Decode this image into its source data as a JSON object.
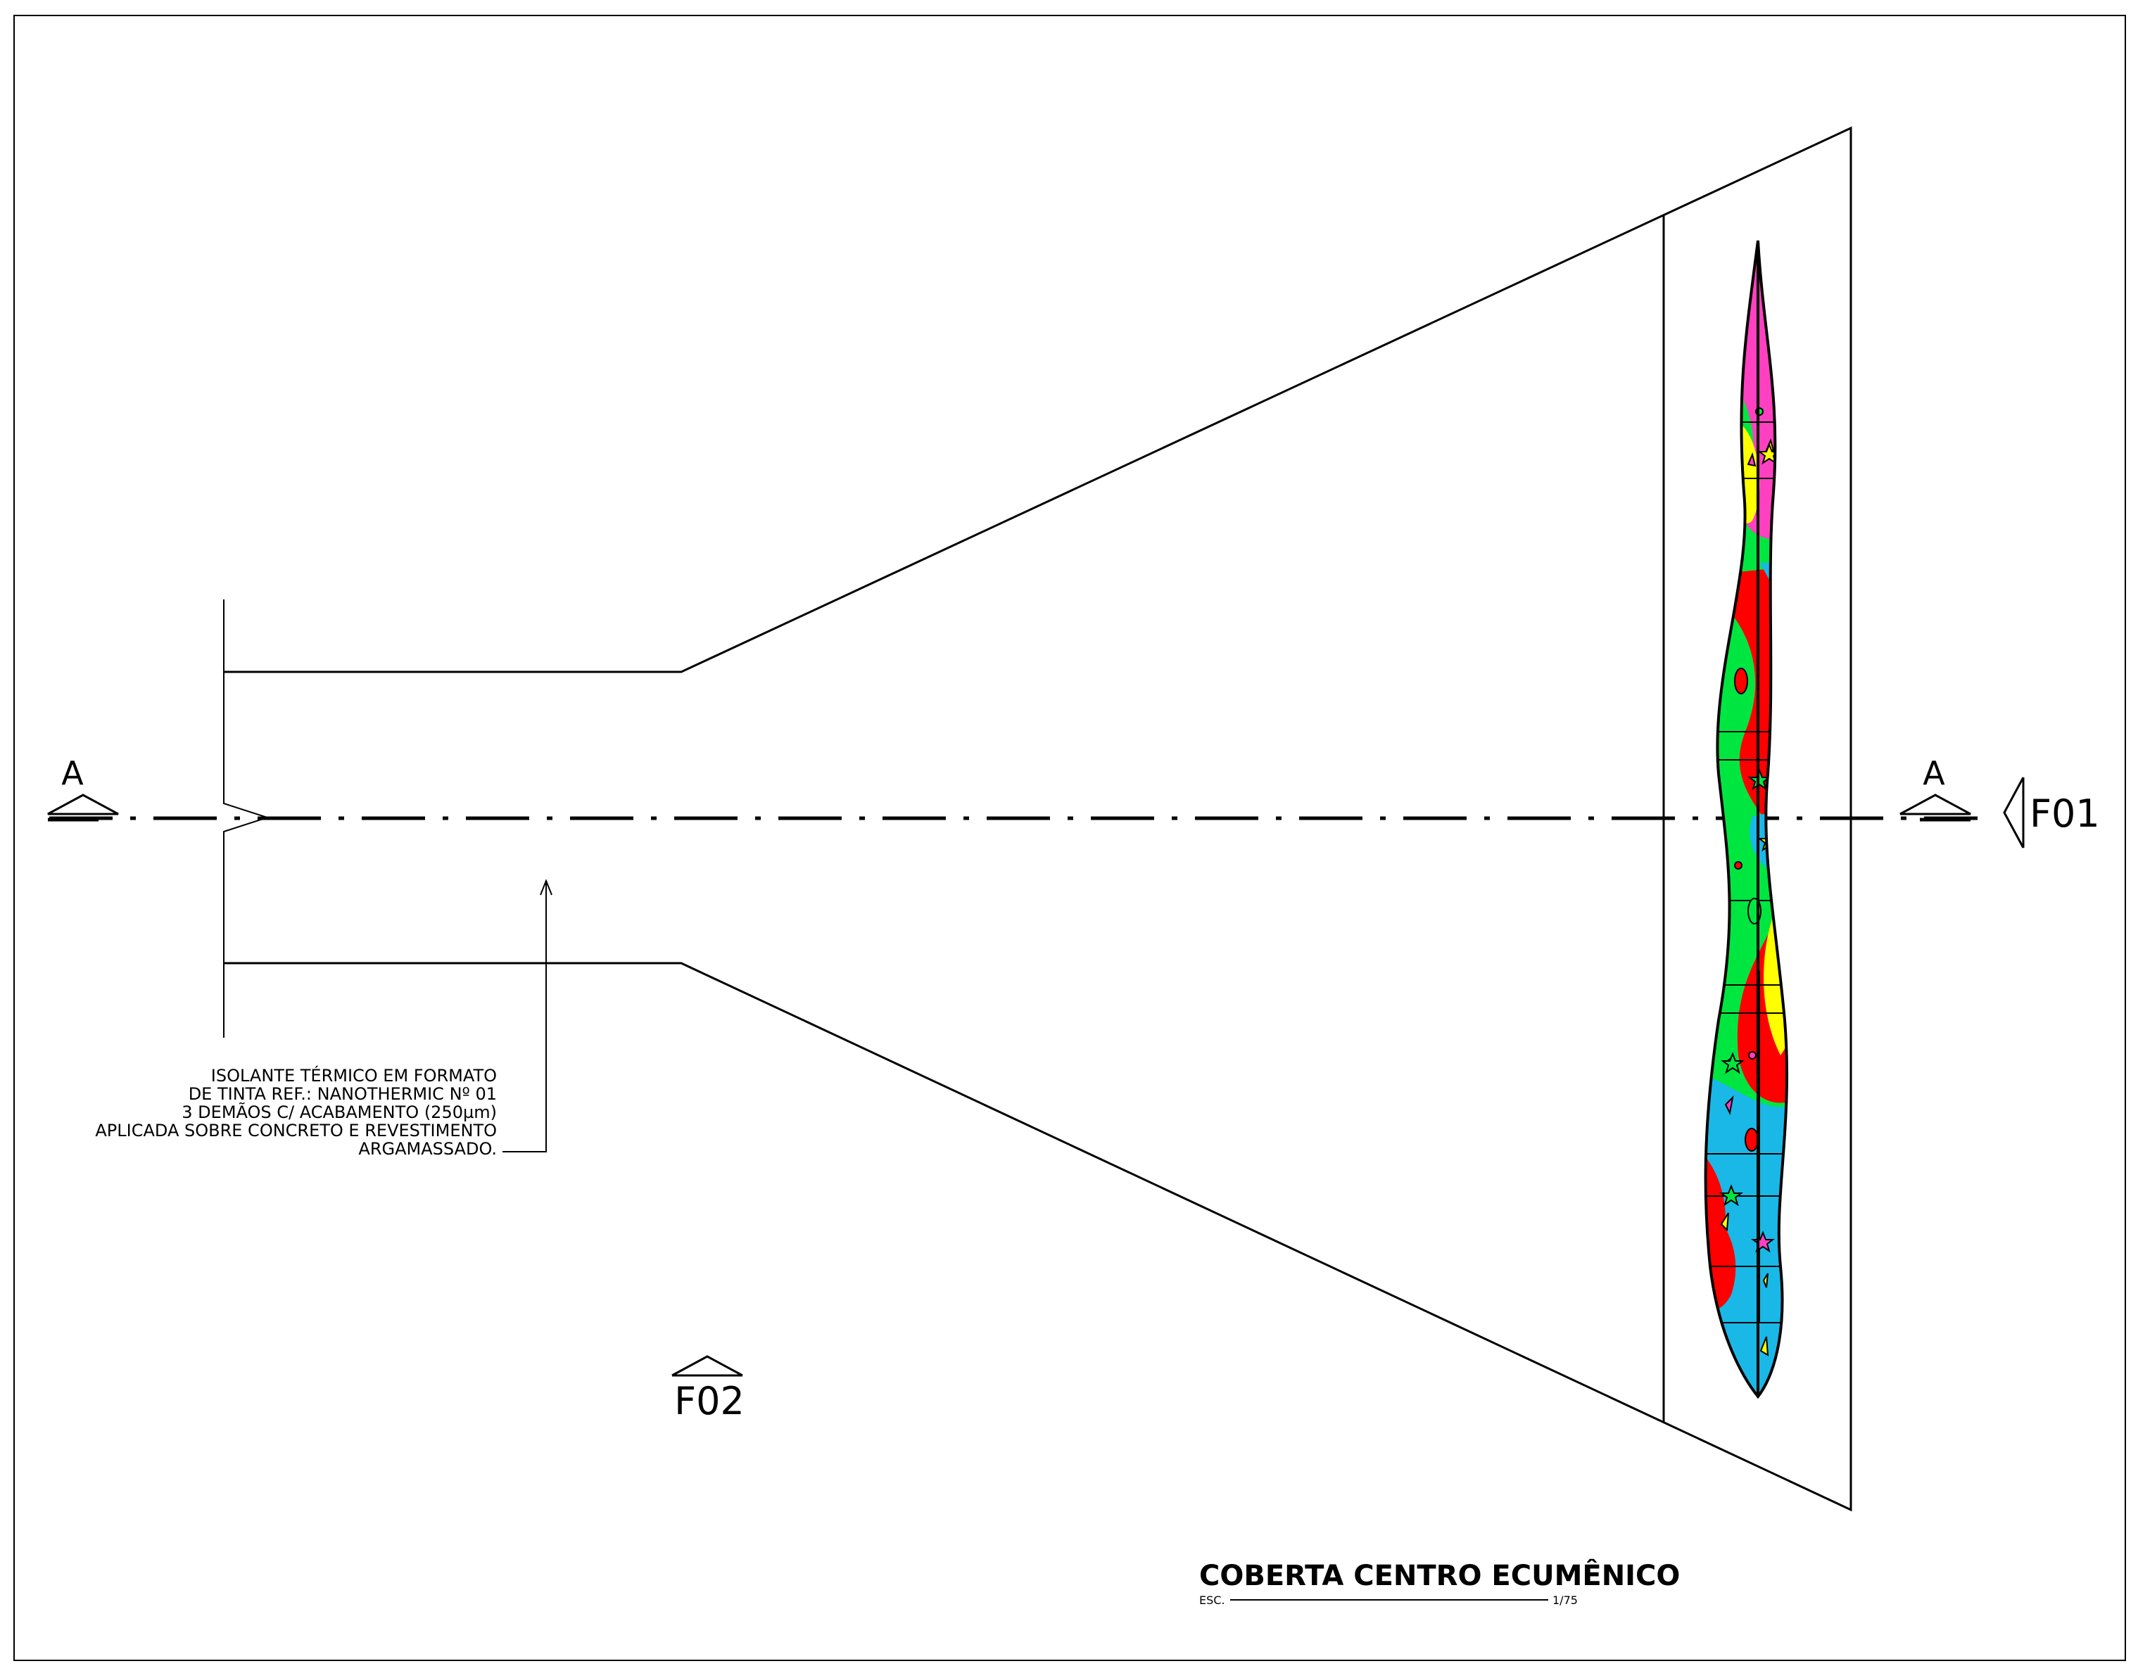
{
  "drawing": {
    "section_label_left": "A",
    "section_label_right": "A",
    "view_marker_f01": "F01",
    "view_marker_f02": "F02",
    "annotation_lines": [
      "ISOLANTE TÉRMICO EM FORMATO",
      "DE TINTA REF.: NANOTHERMIC Nº 01",
      "3 DEMÃOS C/ ACABAMENTO (250µm)",
      "APLICADA SOBRE CONCRETO E REVESTIMENTO",
      "ARGAMASSADO."
    ],
    "title": "COBERTA CENTRO ECUMÊNICO",
    "scale_prefix": "ESC.",
    "scale_value": "1/75"
  },
  "colors": {
    "line": "#000000",
    "mosaic_red": "#ff0000",
    "mosaic_green": "#00e640",
    "mosaic_cyan": "#1ab8e6",
    "mosaic_pink": "#ff40c0",
    "mosaic_yellow": "#ffff00"
  }
}
